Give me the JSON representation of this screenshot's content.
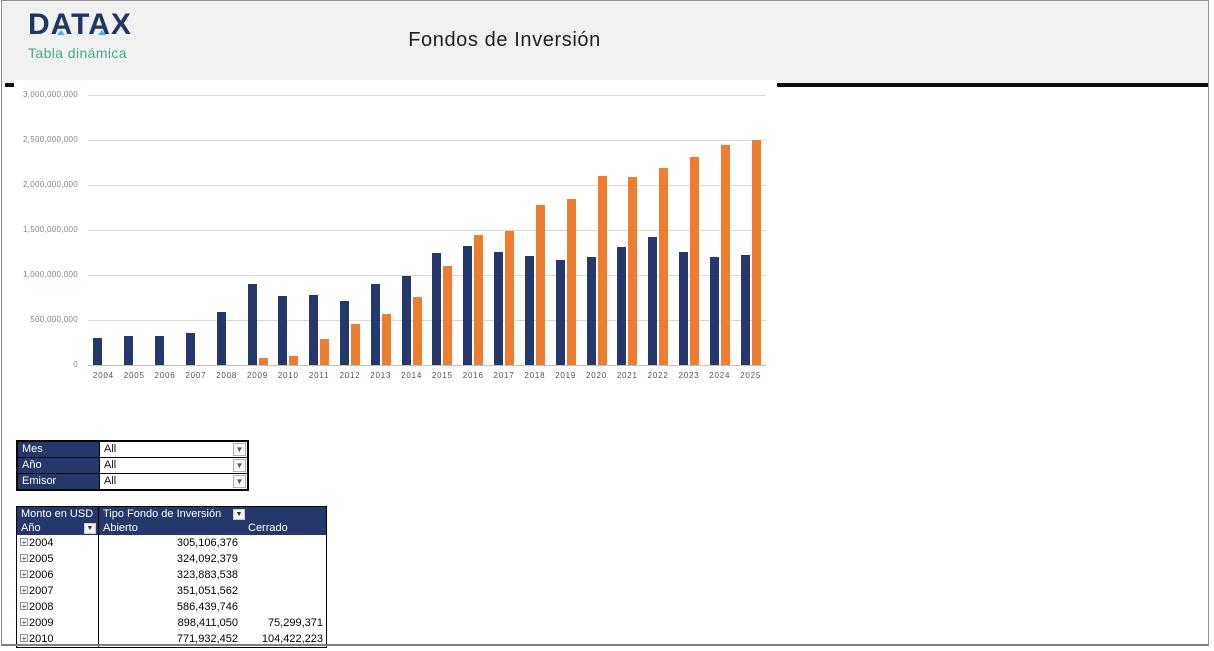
{
  "header": {
    "logo": "DATAX",
    "subtitle": "Tabla dinámica",
    "title": "Fondos de Inversión"
  },
  "colors": {
    "navy": "#24386b",
    "orange": "#ee7d2f",
    "green": "#3fae7e",
    "logo_navy": "#1e3765",
    "logo_accent": "#45b5e8",
    "header_bg": "#f1f1f2"
  },
  "chart_data": {
    "type": "bar",
    "title": "",
    "xlabel": "",
    "ylabel": "",
    "categories": [
      "2004",
      "2005",
      "2006",
      "2007",
      "2008",
      "2009",
      "2010",
      "2011",
      "2012",
      "2013",
      "2014",
      "2015",
      "2016",
      "2017",
      "2018",
      "2019",
      "2020",
      "2021",
      "2022",
      "2023",
      "2024",
      "2025"
    ],
    "series": [
      {
        "name": "Abierto",
        "color": "#24386b",
        "values": [
          305106376,
          324092379,
          323883538,
          351051562,
          586439746,
          898411050,
          771932452,
          780000000,
          712000000,
          895000000,
          985000000,
          1240000000,
          1320000000,
          1258000000,
          1210000000,
          1165000000,
          1205000000,
          1315000000,
          1425000000,
          1252000000,
          1195000000,
          1225000000
        ]
      },
      {
        "name": "Cerrado",
        "color": "#ee7d2f",
        "values": [
          0,
          0,
          0,
          0,
          0,
          75299371,
          104422223,
          292000000,
          458000000,
          570000000,
          750000000,
          1102000000,
          1448000000,
          1487000000,
          1778000000,
          1840000000,
          2098000000,
          2086000000,
          2185000000,
          2315000000,
          2448000000,
          2505000000
        ]
      }
    ],
    "ylim": [
      0,
      3000000000
    ],
    "ytick_interval": 500000000,
    "grid": true,
    "legend_position": "none"
  },
  "filters": {
    "rows": [
      {
        "label": "Mes",
        "value": "All"
      },
      {
        "label": "Año",
        "value": "All"
      },
      {
        "label": "Emisor",
        "value": "All"
      }
    ]
  },
  "pivot": {
    "measure_label": "Monto en USD",
    "column_field_label": "Tipo Fondo de Inversión",
    "row_field_label": "Año",
    "columns": [
      "Abierto",
      "Cerrado"
    ],
    "rows": [
      {
        "year": "2004",
        "abierto": "305,106,376",
        "cerrado": ""
      },
      {
        "year": "2005",
        "abierto": "324,092,379",
        "cerrado": ""
      },
      {
        "year": "2006",
        "abierto": "323,883,538",
        "cerrado": ""
      },
      {
        "year": "2007",
        "abierto": "351,051,562",
        "cerrado": ""
      },
      {
        "year": "2008",
        "abierto": "586,439,746",
        "cerrado": ""
      },
      {
        "year": "2009",
        "abierto": "898,411,050",
        "cerrado": "75,299,371"
      },
      {
        "year": "2010",
        "abierto": "771,932,452",
        "cerrado": "104,422,223"
      }
    ]
  }
}
